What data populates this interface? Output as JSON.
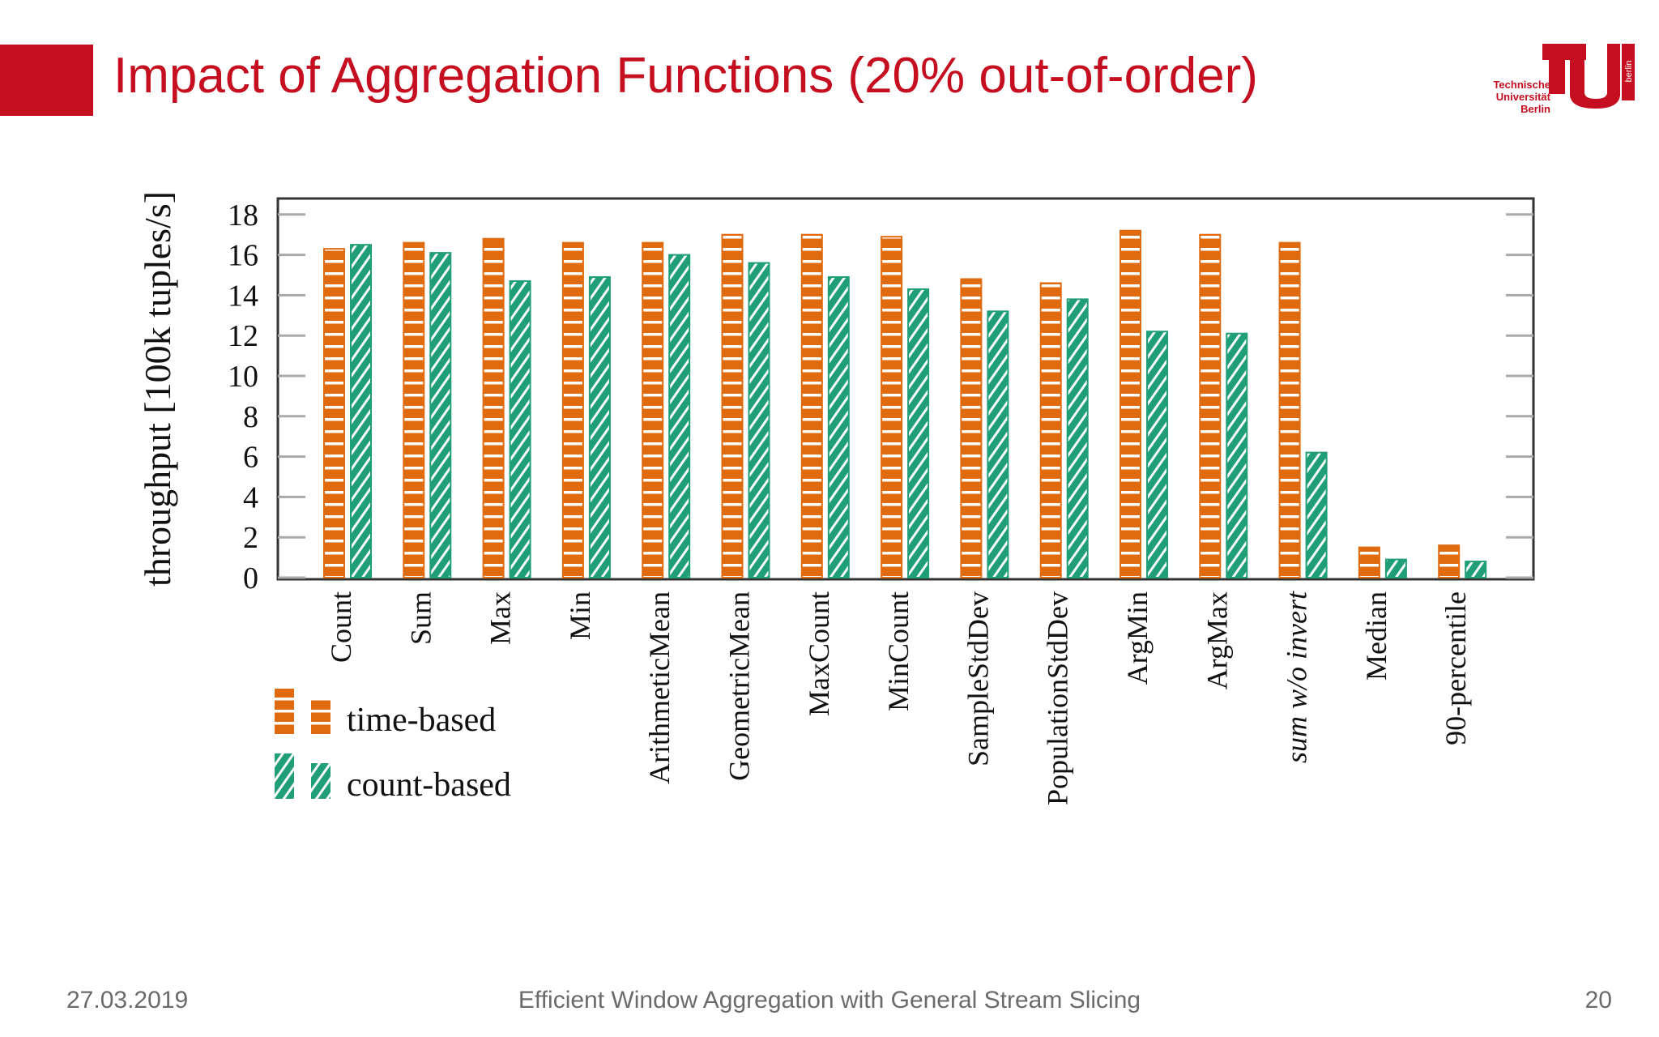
{
  "slide": {
    "title": "Impact of Aggregation Functions (20% out-of-order)",
    "logo_lines": [
      "Technische",
      "Universität",
      "Berlin"
    ],
    "logo_side_text": "berlin",
    "footer_date": "27.03.2019",
    "footer_title": "Efficient Window Aggregation with General Stream Slicing",
    "page_number": "20"
  },
  "colors": {
    "accent": "#c50e1f",
    "time_based": "#e06a0e",
    "count_based": "#1f9e77"
  },
  "chart_data": {
    "type": "bar",
    "ylabel": "throughput [100k tuples/s]",
    "xlabel": "",
    "ylim": [
      0,
      18.5
    ],
    "yticks": [
      0,
      2,
      4,
      6,
      8,
      10,
      12,
      14,
      16,
      18
    ],
    "grid": false,
    "legend_position": "bottom-left",
    "categories": [
      "Count",
      "Sum",
      "Max",
      "Min",
      "ArithmeticMean",
      "GeometricMean",
      "MaxCount",
      "MinCount",
      "SampleStdDev",
      "PopulationStdDev",
      "ArgMin",
      "ArgMax",
      "sum w/o invert",
      "Median",
      "90-percentile"
    ],
    "series": [
      {
        "name": "time-based",
        "values": [
          16.3,
          16.6,
          16.8,
          16.6,
          16.6,
          17.0,
          17.0,
          16.9,
          14.8,
          14.6,
          17.2,
          17.0,
          16.6,
          1.5,
          1.6
        ]
      },
      {
        "name": "count-based",
        "values": [
          16.5,
          16.1,
          14.7,
          14.9,
          16.0,
          15.6,
          14.9,
          14.3,
          13.2,
          13.8,
          12.2,
          12.1,
          6.2,
          0.9,
          0.8
        ]
      }
    ]
  }
}
